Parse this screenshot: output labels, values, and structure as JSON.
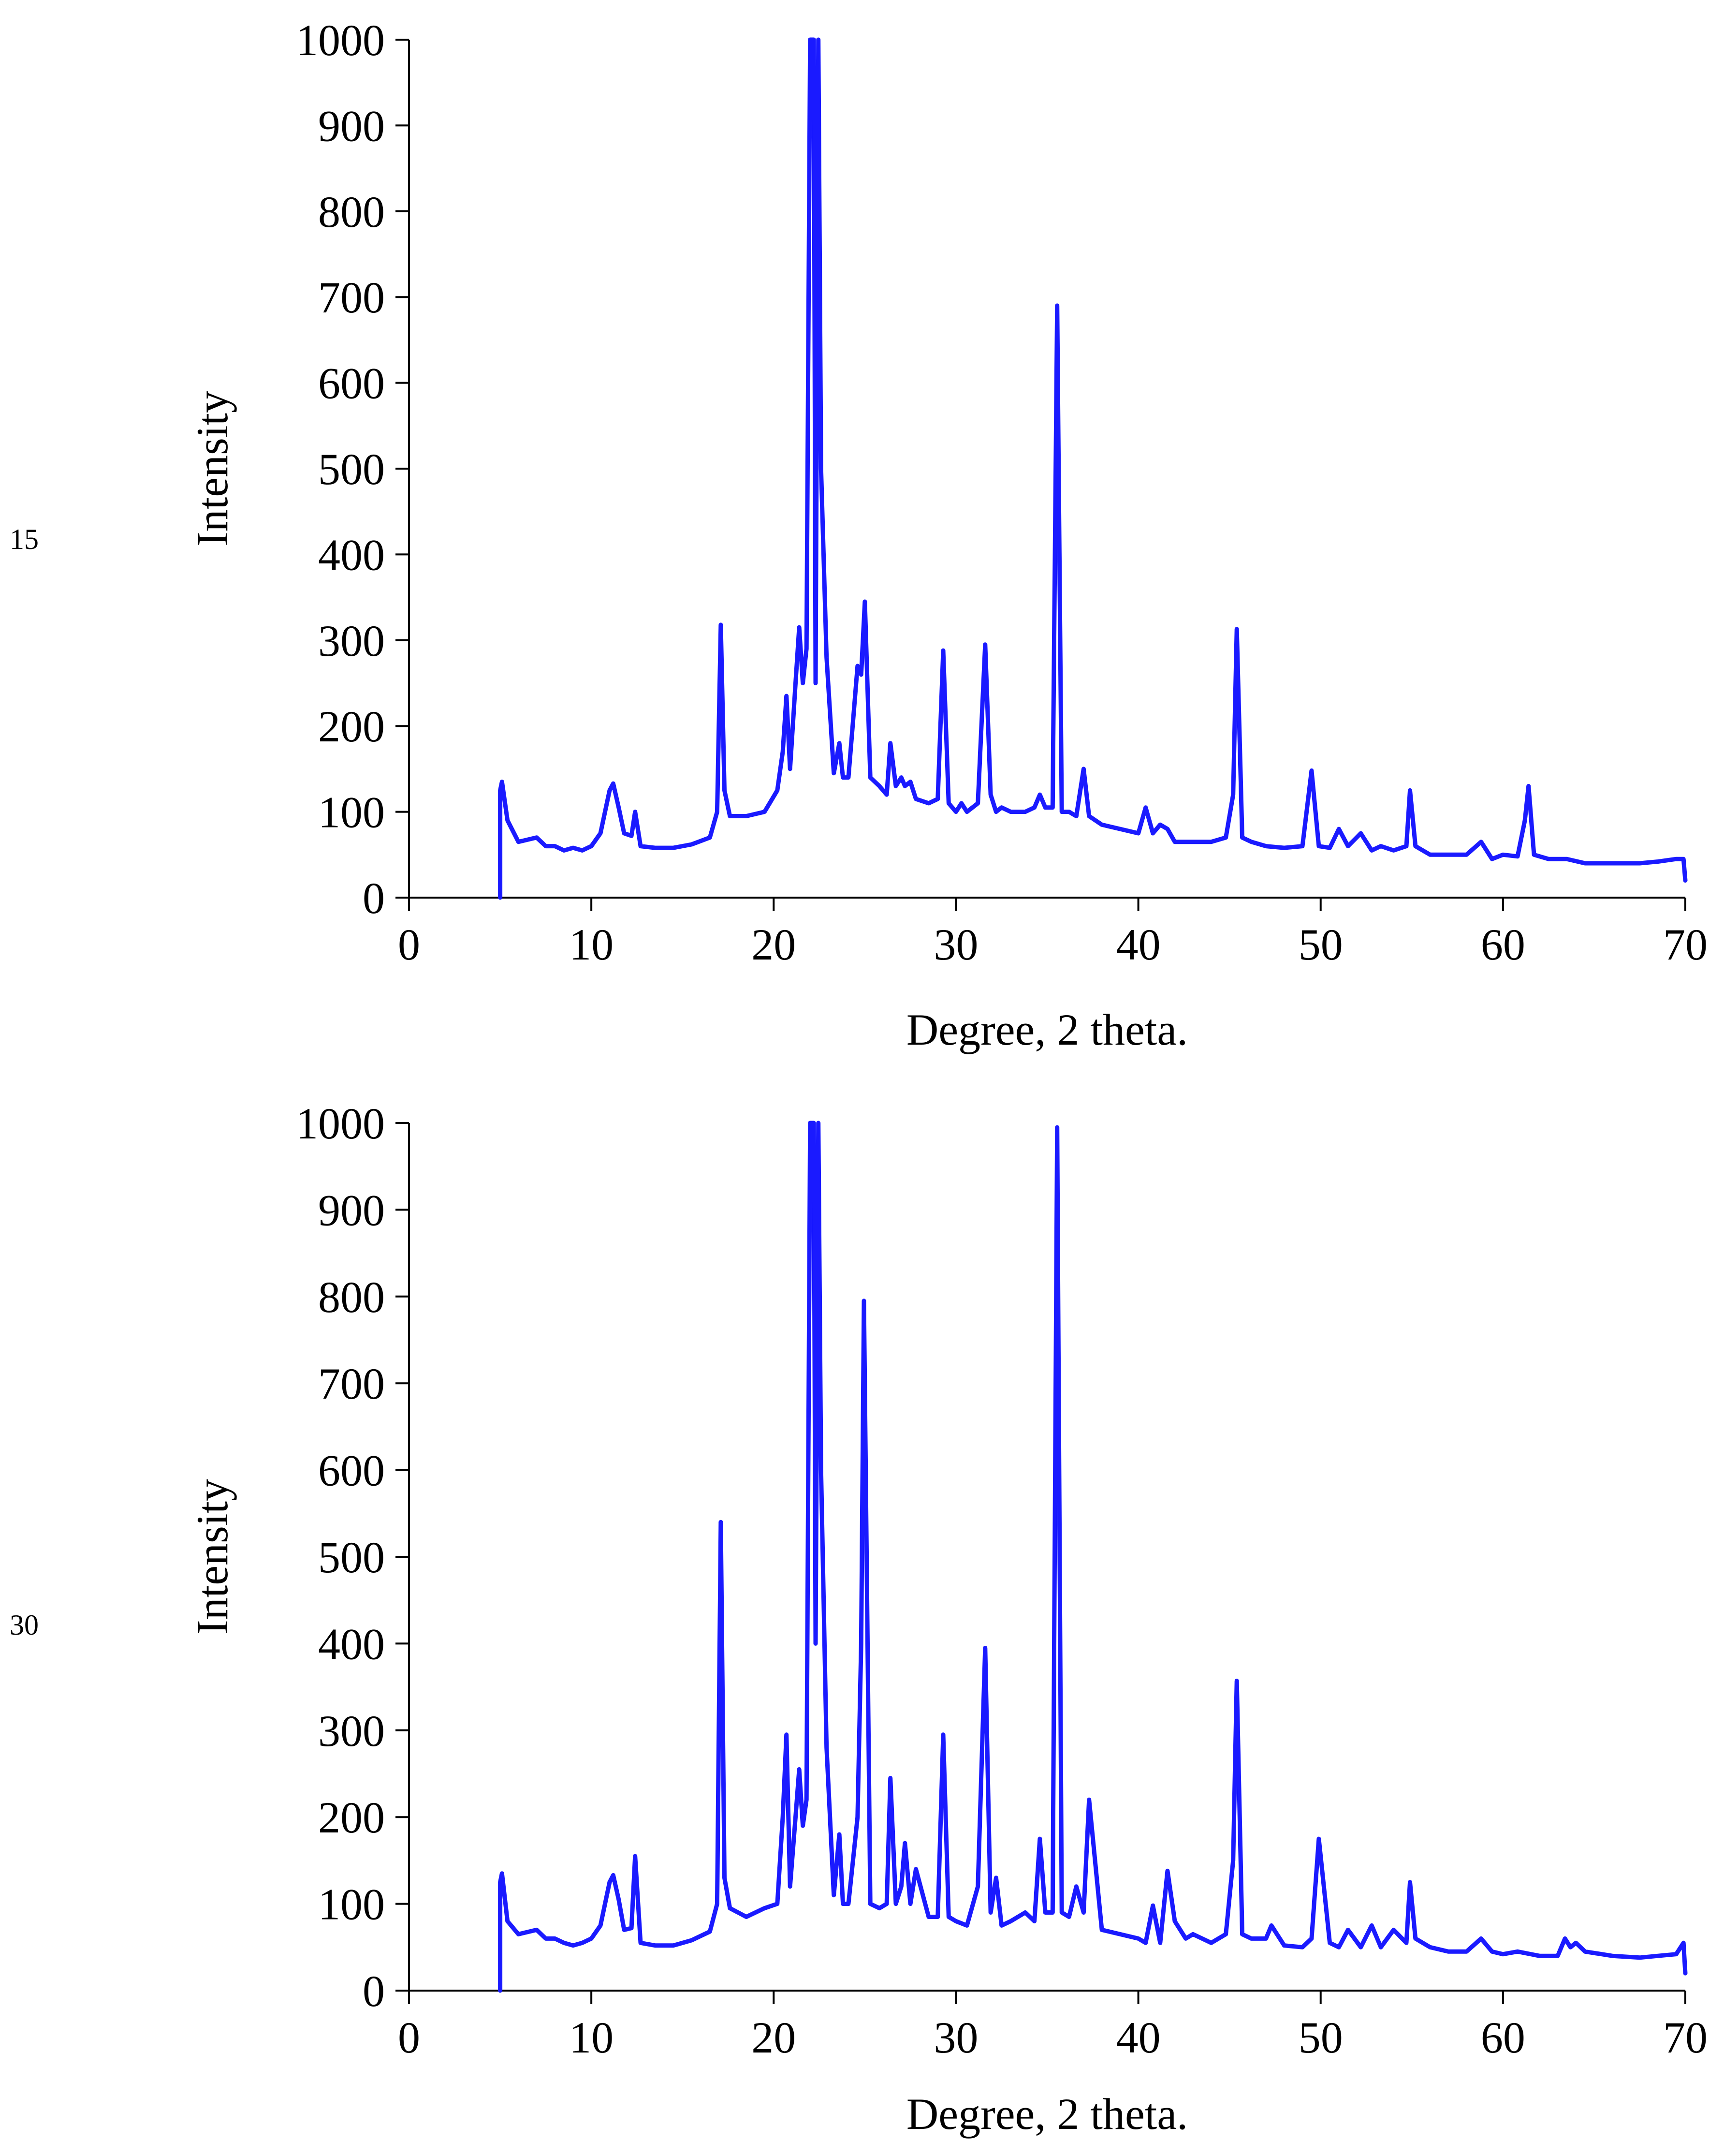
{
  "chart_data": [
    {
      "type": "line",
      "side_label": "15",
      "title": "",
      "xlabel": "Degree, 2 theta.",
      "ylabel": "Intensity",
      "xlim": [
        0,
        70
      ],
      "ylim": [
        0,
        1000
      ],
      "xticks": [
        0,
        10,
        20,
        30,
        40,
        50,
        60,
        70
      ],
      "yticks": [
        0,
        100,
        200,
        300,
        400,
        500,
        600,
        700,
        800,
        900,
        1000
      ],
      "color": "#1a1aff",
      "series": [
        {
          "name": "15",
          "x": [
            5.0,
            5.0,
            5.1,
            5.4,
            6.0,
            7.0,
            7.5,
            8.0,
            8.5,
            9.0,
            9.5,
            10.0,
            10.5,
            11.0,
            11.2,
            11.5,
            11.8,
            12.2,
            12.4,
            12.7,
            13.5,
            14.5,
            15.5,
            16.5,
            16.9,
            17.1,
            17.3,
            17.6,
            18.5,
            19.5,
            20.2,
            20.5,
            20.7,
            20.9,
            21.2,
            21.4,
            21.6,
            21.8,
            22.0,
            22.2,
            22.3,
            22.45,
            22.6,
            22.9,
            23.3,
            23.6,
            23.8,
            24.1,
            24.6,
            24.8,
            25.0,
            25.3,
            25.8,
            26.2,
            26.4,
            26.7,
            27.0,
            27.2,
            27.5,
            27.8,
            28.5,
            29.0,
            29.3,
            29.6,
            30.0,
            30.3,
            30.6,
            31.2,
            31.6,
            31.9,
            32.2,
            32.5,
            33.0,
            33.8,
            34.3,
            34.6,
            34.9,
            35.3,
            35.55,
            35.8,
            36.2,
            36.6,
            37.0,
            37.3,
            38.0,
            39.0,
            40.0,
            40.4,
            40.8,
            41.2,
            41.6,
            42.0,
            43.0,
            44.0,
            44.8,
            45.2,
            45.4,
            45.7,
            46.2,
            47.0,
            48.0,
            49.0,
            49.5,
            49.9,
            50.5,
            51.0,
            51.5,
            52.2,
            52.8,
            53.3,
            54.0,
            54.7,
            54.9,
            55.2,
            56.0,
            57.0,
            58.0,
            58.8,
            59.4,
            60.0,
            60.8,
            61.2,
            61.4,
            61.7,
            62.5,
            63.5,
            64.5,
            66.0,
            67.5,
            68.5,
            69.5,
            69.9,
            70.0
          ],
          "y": [
            0,
            125,
            135,
            90,
            65,
            70,
            60,
            60,
            55,
            58,
            55,
            60,
            75,
            125,
            133,
            105,
            75,
            72,
            100,
            60,
            58,
            58,
            62,
            70,
            100,
            318,
            125,
            95,
            95,
            100,
            125,
            170,
            235,
            150,
            250,
            315,
            250,
            290,
            1000,
            1000,
            250,
            1000,
            500,
            280,
            145,
            180,
            140,
            140,
            270,
            260,
            345,
            140,
            130,
            120,
            180,
            130,
            140,
            130,
            135,
            115,
            110,
            115,
            288,
            110,
            100,
            110,
            100,
            110,
            295,
            120,
            100,
            105,
            100,
            100,
            105,
            120,
            105,
            105,
            690,
            100,
            100,
            95,
            150,
            95,
            85,
            80,
            75,
            105,
            75,
            85,
            80,
            65,
            65,
            65,
            70,
            120,
            313,
            70,
            65,
            60,
            58,
            60,
            148,
            60,
            58,
            80,
            60,
            75,
            55,
            60,
            55,
            60,
            125,
            60,
            50,
            50,
            50,
            65,
            45,
            50,
            48,
            90,
            130,
            50,
            45,
            45,
            40,
            40,
            40,
            42,
            45,
            45,
            20
          ]
        }
      ]
    },
    {
      "type": "line",
      "side_label": "30",
      "title": "",
      "xlabel": "Degree, 2 theta.",
      "ylabel": "Intensity",
      "xlim": [
        0,
        70
      ],
      "ylim": [
        0,
        1000
      ],
      "xticks": [
        0,
        10,
        20,
        30,
        40,
        50,
        60,
        70
      ],
      "yticks": [
        0,
        100,
        200,
        300,
        400,
        500,
        600,
        700,
        800,
        900,
        1000
      ],
      "color": "#1a1aff",
      "series": [
        {
          "name": "30",
          "x": [
            5.0,
            5.0,
            5.1,
            5.4,
            6.0,
            7.0,
            7.5,
            8.0,
            8.5,
            9.0,
            9.5,
            10.0,
            10.5,
            11.0,
            11.2,
            11.5,
            11.8,
            12.2,
            12.4,
            12.7,
            13.5,
            14.5,
            15.5,
            16.5,
            16.9,
            17.1,
            17.3,
            17.6,
            18.5,
            19.5,
            20.2,
            20.5,
            20.7,
            20.9,
            21.2,
            21.4,
            21.6,
            21.8,
            22.0,
            22.2,
            22.3,
            22.45,
            22.6,
            22.9,
            23.3,
            23.6,
            23.8,
            24.1,
            24.6,
            24.8,
            24.95,
            25.3,
            25.8,
            26.2,
            26.4,
            26.7,
            27.0,
            27.2,
            27.5,
            27.8,
            28.5,
            29.0,
            29.3,
            29.6,
            30.0,
            30.6,
            31.2,
            31.6,
            31.9,
            32.2,
            32.5,
            33.0,
            33.8,
            34.3,
            34.6,
            34.9,
            35.3,
            35.55,
            35.8,
            36.2,
            36.6,
            37.0,
            37.3,
            38.0,
            39.0,
            40.0,
            40.4,
            40.8,
            41.2,
            41.6,
            42.0,
            42.6,
            43.0,
            44.0,
            44.8,
            45.2,
            45.4,
            45.7,
            46.2,
            47.0,
            47.3,
            48.0,
            49.0,
            49.5,
            49.9,
            50.5,
            51.0,
            51.5,
            52.2,
            52.8,
            53.3,
            54.0,
            54.7,
            54.9,
            55.2,
            56.0,
            57.0,
            58.0,
            58.8,
            59.4,
            60.0,
            60.8,
            62.0,
            63.0,
            63.4,
            63.7,
            64.0,
            64.5,
            66.0,
            67.5,
            68.5,
            69.5,
            69.9,
            70.0
          ],
          "y": [
            0,
            125,
            135,
            80,
            65,
            70,
            60,
            60,
            55,
            52,
            55,
            60,
            75,
            125,
            133,
            105,
            70,
            72,
            155,
            55,
            52,
            52,
            58,
            68,
            100,
            540,
            130,
            95,
            85,
            95,
            100,
            200,
            295,
            120,
            200,
            255,
            190,
            220,
            1000,
            1000,
            400,
            1000,
            600,
            280,
            110,
            180,
            100,
            100,
            200,
            400,
            795,
            100,
            95,
            100,
            245,
            100,
            120,
            170,
            100,
            140,
            85,
            85,
            295,
            85,
            80,
            75,
            120,
            395,
            90,
            130,
            75,
            80,
            90,
            80,
            175,
            90,
            90,
            995,
            90,
            85,
            120,
            90,
            220,
            70,
            65,
            60,
            55,
            98,
            55,
            138,
            80,
            60,
            65,
            55,
            65,
            150,
            357,
            65,
            60,
            60,
            75,
            52,
            50,
            60,
            175,
            55,
            50,
            70,
            50,
            75,
            50,
            70,
            55,
            125,
            60,
            50,
            45,
            45,
            60,
            45,
            42,
            45,
            40,
            40,
            60,
            50,
            55,
            45,
            40,
            38,
            40,
            42,
            55,
            20
          ]
        }
      ]
    }
  ]
}
